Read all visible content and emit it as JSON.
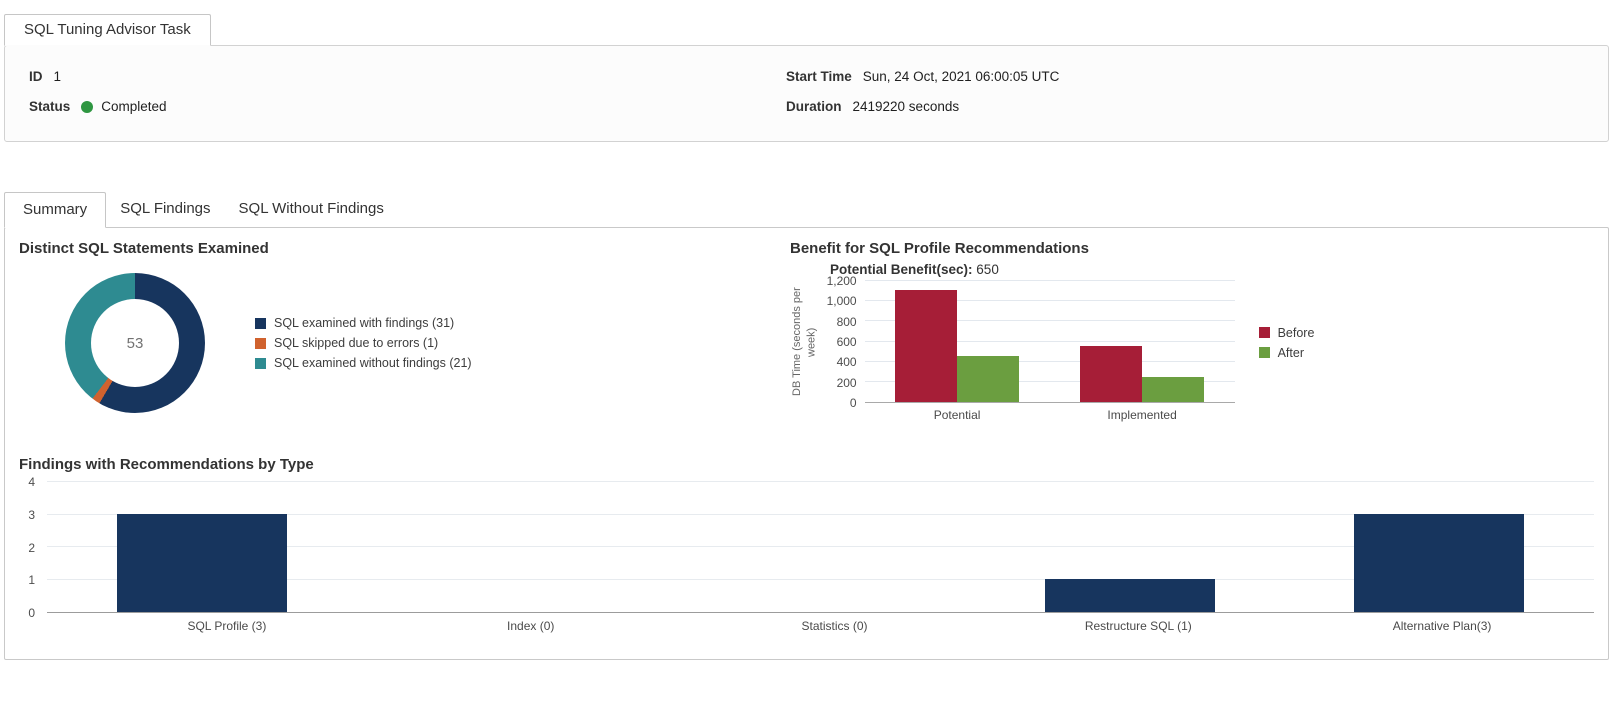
{
  "window": {
    "tab_title": "SQL Tuning Advisor Task"
  },
  "task_info": {
    "id_label": "ID",
    "id_value": "1",
    "status_label": "Status",
    "status_value": "Completed",
    "start_time_label": "Start Time",
    "start_time_value": "Sun, 24 Oct, 2021 06:00:05 UTC",
    "duration_label": "Duration",
    "duration_value": "2419220 seconds"
  },
  "tabs": [
    {
      "label": "Summary",
      "active": true
    },
    {
      "label": "SQL Findings",
      "active": false
    },
    {
      "label": "SQL Without Findings",
      "active": false
    }
  ],
  "colors": {
    "status_green": "#2E9641",
    "navy": "#17355E",
    "orange": "#D0622E",
    "teal": "#2E8B91",
    "crimson": "#A61E37",
    "green": "#6B9E40"
  },
  "chart_data": [
    {
      "type": "pie",
      "donut": true,
      "title": "Distinct SQL Statements Examined",
      "center_label": "53",
      "legend_position": "right",
      "slices": [
        {
          "label": "SQL examined with findings (31)",
          "value": 31,
          "color": "#17355E"
        },
        {
          "label": "SQL skipped due to errors (1)",
          "value": 1,
          "color": "#D0622E"
        },
        {
          "label": "SQL examined without findings (21)",
          "value": 21,
          "color": "#2E8B91"
        }
      ]
    },
    {
      "type": "bar",
      "title": "Benefit for SQL Profile Recommendations",
      "subtitle_label": "Potential Benefit(sec):",
      "subtitle_value": "650",
      "ylabel": "DB Time (seconds per week)",
      "categories": [
        "Potential",
        "Implemented"
      ],
      "series": [
        {
          "name": "Before",
          "color": "#A61E37",
          "values": [
            1100,
            550
          ]
        },
        {
          "name": "After",
          "color": "#6B9E40",
          "values": [
            450,
            250
          ]
        }
      ],
      "ylim": [
        0,
        1200
      ],
      "ytick_values": [
        0,
        200,
        400,
        600,
        800,
        1000,
        1200
      ],
      "ytick_labels": [
        "0",
        "200",
        "400",
        "600",
        "800",
        "1,000",
        "1,200"
      ],
      "grid": true,
      "legend_position": "right"
    },
    {
      "type": "bar",
      "title": "Findings with Recommendations by Type",
      "categories": [
        "SQL Profile (3)",
        "Index (0)",
        "Statistics (0)",
        "Restructure SQL (1)",
        "Alternative Plan(3)"
      ],
      "values": [
        3,
        0,
        0,
        1,
        3
      ],
      "color": "#17355E",
      "ylim": [
        0,
        4
      ],
      "ytick_values": [
        0,
        1,
        2,
        3,
        4
      ],
      "ytick_labels": [
        "0",
        "1",
        "2",
        "3",
        "4"
      ],
      "grid": true,
      "legend_position": "none"
    }
  ]
}
